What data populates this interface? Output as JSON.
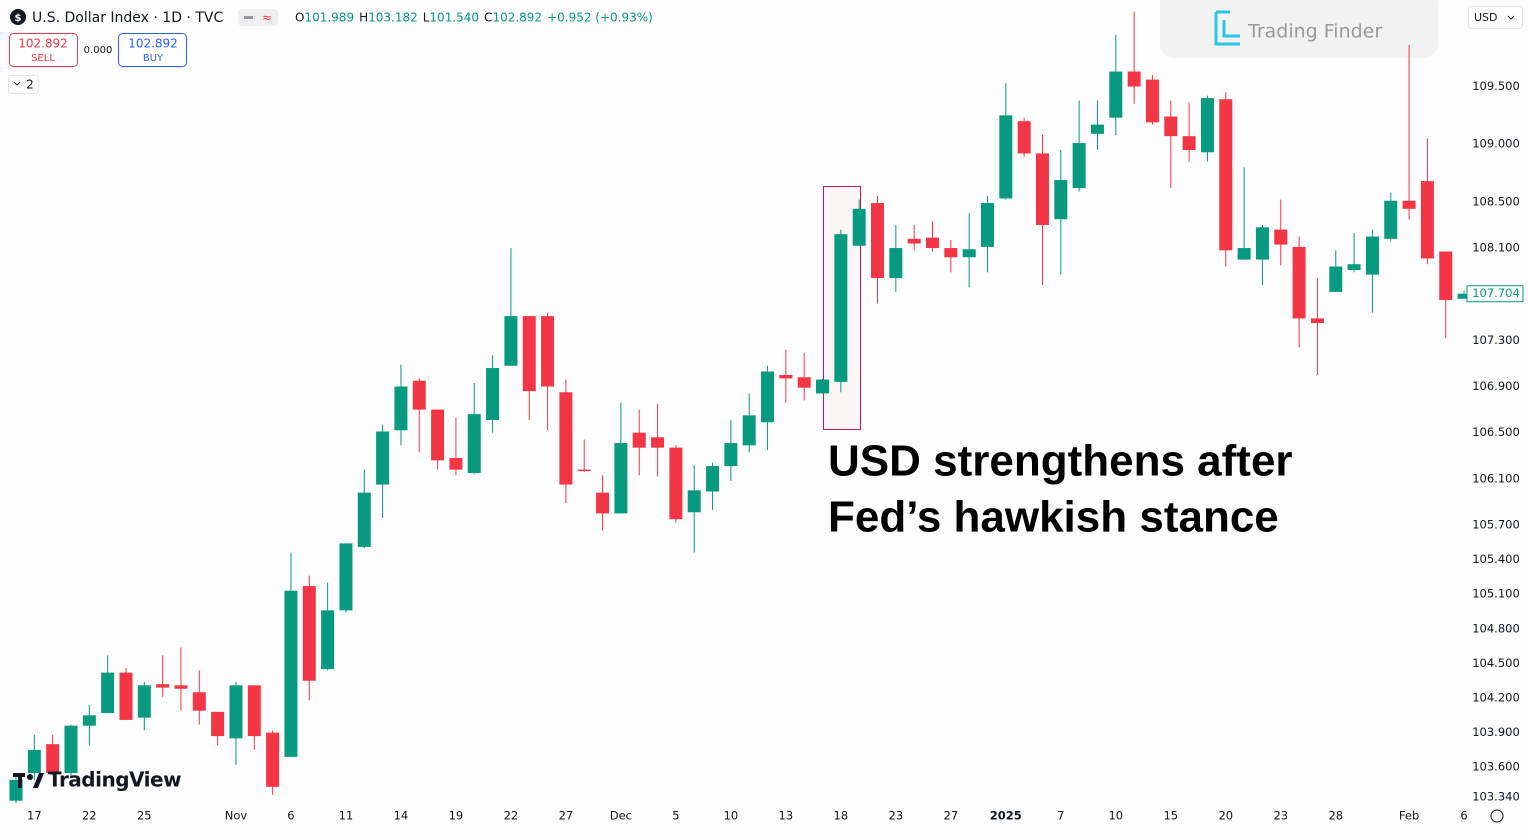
{
  "header": {
    "title": "U.S. Dollar Index · 1D · TVC",
    "ohlc": [
      {
        "label": "O",
        "value": "101.989"
      },
      {
        "label": "H",
        "value": "103.182"
      },
      {
        "label": "L",
        "value": "101.540"
      },
      {
        "label": "C",
        "value": "102.892"
      }
    ],
    "change": "+0.952 (+0.93%)",
    "sell_price": "102.892",
    "sell_label": "SELL",
    "spread": "0.000",
    "buy_price": "102.892",
    "buy_label": "BUY",
    "indicators_count": "2",
    "currency": "USD",
    "watermark": "Trading Finder",
    "brand": "TradingView"
  },
  "chart_data": {
    "type": "candlestick",
    "annotation": [
      "USD strengthens after",
      "Fed’s hawkish stance"
    ],
    "up_color": "#089981",
    "down_color": "#f23645",
    "categories": [
      null,
      "17",
      null,
      null,
      "22",
      null,
      null,
      "25",
      null,
      null,
      null,
      null,
      "Nov",
      null,
      null,
      "6",
      null,
      null,
      "11",
      null,
      null,
      "14",
      null,
      null,
      "19",
      null,
      null,
      "22",
      null,
      null,
      "27",
      null,
      null,
      "Dec",
      null,
      null,
      "5",
      null,
      null,
      "10",
      null,
      null,
      "13",
      null,
      null,
      "18",
      null,
      null,
      "23",
      null,
      null,
      "27",
      null,
      null,
      "2025",
      null,
      null,
      "7",
      null,
      null,
      "10",
      null,
      null,
      "15",
      null,
      null,
      "20",
      null,
      null,
      "23",
      null,
      null,
      "28",
      null,
      null,
      null,
      "Feb",
      null,
      null,
      "6"
    ],
    "open": [
      103.31,
      103.55,
      103.8,
      103.55,
      103.96,
      104.07,
      104.42,
      104.03,
      104.32,
      104.31,
      104.25,
      104.08,
      103.85,
      104.31,
      103.9,
      103.69,
      105.17,
      104.45,
      104.96,
      105.51,
      106.05,
      106.52,
      106.95,
      106.7,
      106.28,
      106.15,
      106.61,
      107.08,
      107.51,
      107.51,
      106.85,
      106.18,
      105.98,
      105.8,
      106.5,
      106.46,
      106.37,
      105.81,
      105.99,
      106.21,
      106.39,
      106.59,
      107.0,
      106.98,
      106.84,
      106.94,
      108.12,
      108.49,
      107.84,
      108.18,
      108.19,
      108.1,
      108.02,
      108.11,
      108.53,
      109.2,
      108.92,
      108.35,
      108.62,
      109.09,
      109.23,
      109.63,
      109.56,
      109.24,
      109.07,
      108.93,
      109.39,
      108.0,
      108.0,
      108.26,
      108.11,
      107.49,
      107.72,
      107.91,
      107.87,
      108.18,
      108.51,
      108.68,
      108.07,
      107.66
    ],
    "high": [
      103.53,
      103.88,
      103.88,
      103.97,
      104.14,
      104.57,
      104.46,
      104.34,
      104.57,
      104.64,
      104.44,
      104.08,
      104.34,
      104.31,
      103.92,
      105.46,
      105.26,
      105.2,
      105.54,
      106.18,
      106.57,
      107.09,
      106.97,
      106.7,
      106.63,
      106.93,
      107.17,
      108.1,
      107.51,
      107.54,
      106.96,
      106.44,
      106.13,
      106.76,
      106.7,
      106.75,
      106.39,
      106.22,
      106.24,
      106.61,
      106.84,
      107.08,
      107.22,
      107.19,
      106.97,
      108.26,
      108.52,
      108.55,
      108.3,
      108.3,
      108.33,
      108.17,
      108.4,
      108.55,
      109.53,
      109.23,
      109.08,
      108.95,
      109.38,
      109.38,
      109.95,
      110.15,
      109.6,
      109.38,
      109.36,
      109.42,
      109.45,
      108.8,
      108.3,
      108.52,
      108.2,
      107.84,
      108.08,
      108.23,
      108.26,
      108.58,
      109.86,
      109.05,
      108.07,
      107.73
    ],
    "low": [
      103.29,
      103.49,
      103.53,
      103.53,
      103.79,
      104.07,
      104.01,
      103.92,
      104.21,
      104.09,
      103.97,
      103.79,
      103.62,
      103.75,
      103.36,
      103.69,
      104.18,
      104.44,
      104.94,
      105.5,
      105.76,
      106.39,
      106.33,
      106.18,
      106.13,
      106.14,
      106.5,
      107.08,
      106.61,
      106.52,
      105.89,
      106.16,
      105.65,
      105.8,
      106.13,
      106.12,
      105.72,
      105.46,
      105.83,
      106.08,
      106.33,
      106.35,
      106.76,
      106.78,
      106.84,
      106.85,
      108.12,
      107.62,
      107.72,
      108.08,
      108.07,
      107.89,
      107.76,
      107.89,
      108.52,
      108.89,
      107.78,
      107.87,
      108.59,
      108.95,
      109.08,
      109.35,
      109.17,
      108.62,
      108.85,
      108.85,
      107.94,
      108.0,
      107.78,
      107.95,
      107.24,
      107.0,
      107.72,
      107.89,
      107.54,
      108.16,
      108.35,
      107.96,
      107.32,
      107.66
    ],
    "close": [
      103.49,
      103.75,
      103.55,
      103.96,
      104.05,
      104.42,
      104.01,
      104.31,
      104.29,
      104.28,
      104.09,
      103.87,
      104.31,
      103.87,
      103.43,
      105.13,
      104.35,
      104.96,
      105.54,
      105.98,
      106.51,
      106.9,
      106.7,
      106.26,
      106.18,
      106.66,
      107.06,
      107.51,
      106.86,
      106.9,
      106.05,
      106.17,
      105.8,
      106.41,
      106.37,
      106.37,
      105.75,
      106.0,
      106.21,
      106.41,
      106.65,
      107.03,
      106.97,
      106.89,
      106.96,
      108.22,
      108.44,
      107.84,
      108.1,
      108.14,
      108.1,
      108.02,
      108.09,
      108.49,
      109.25,
      108.92,
      108.3,
      108.69,
      109.01,
      109.17,
      109.63,
      109.5,
      109.19,
      109.07,
      108.95,
      109.4,
      108.08,
      108.1,
      108.28,
      108.13,
      107.49,
      107.45,
      107.94,
      107.96,
      108.2,
      108.51,
      108.44,
      108.01,
      107.65,
      107.704
    ],
    "ylim": [
      103.29,
      110.25
    ],
    "yticks": [
      {
        "value": 109.5,
        "label": "109.500"
      },
      {
        "value": 109,
        "label": "109.000"
      },
      {
        "value": 108.5,
        "label": "108.500"
      },
      {
        "value": 108.1,
        "label": "108.100"
      },
      {
        "value": 107.3,
        "label": "107.300"
      },
      {
        "value": 106.9,
        "label": "106.900"
      },
      {
        "value": 106.5,
        "label": "106.500"
      },
      {
        "value": 106.1,
        "label": "106.100"
      },
      {
        "value": 105.7,
        "label": "105.700"
      },
      {
        "value": 105.4,
        "label": "105.400"
      },
      {
        "value": 105.1,
        "label": "105.100"
      },
      {
        "value": 104.8,
        "label": "104.800"
      },
      {
        "value": 104.5,
        "label": "104.500"
      },
      {
        "value": 104.2,
        "label": "104.200"
      },
      {
        "value": 103.9,
        "label": "103.900"
      },
      {
        "value": 103.6,
        "label": "103.600"
      },
      {
        "value": 103.34,
        "label": "103.340"
      }
    ],
    "grid": false
  }
}
